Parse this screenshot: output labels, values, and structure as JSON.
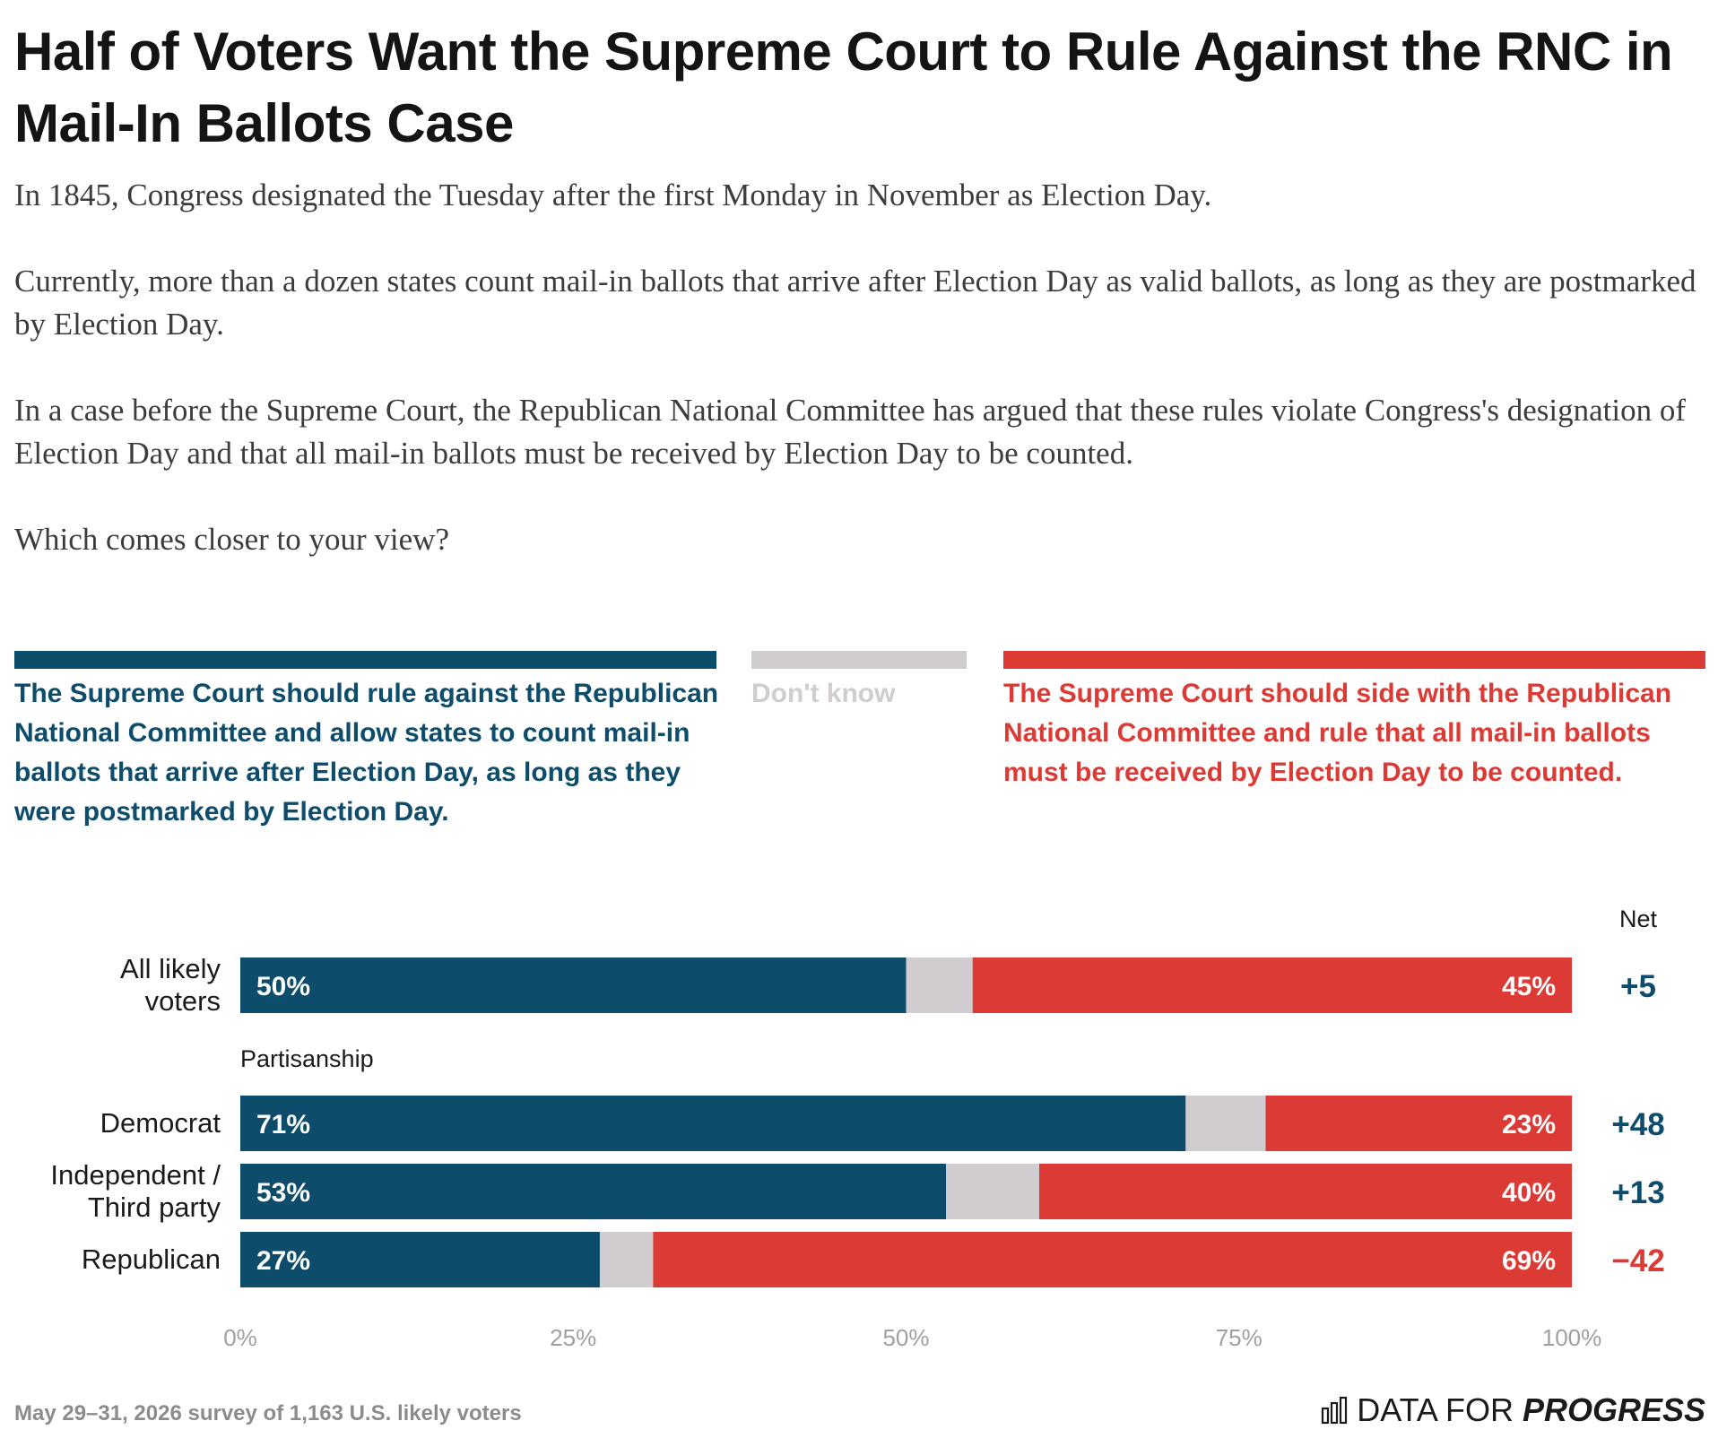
{
  "title": "Half of Voters Want the Supreme Court to Rule Against the RNC in Mail-In Ballots Case",
  "intro": {
    "p1": "In 1845, Congress designated the Tuesday after the first Monday in November as Election Day.",
    "p2": "Currently, more than a dozen states count mail-in ballots that arrive after Election Day as valid ballots, as long as they are postmarked by Election Day.",
    "p3": "In a case before the Supreme Court, the Republican National Committee has argued that these rules violate Congress's designation of Election Day and that all mail-in ballots must be received by Election Day to be counted.",
    "p4": "Which comes closer to your view?"
  },
  "legend": {
    "against": "The Supreme Court should rule against the Republican National Committee and allow states to count mail-in ballots that arrive after Election Day, as long as they were postmarked by Election Day.",
    "dont_know": "Don't know",
    "side_with": "The Supreme Court should side with the Republican National Committee and rule that all mail-in ballots must be received by Election Day to be counted."
  },
  "colors": {
    "against": "#0d4d6b",
    "dont_know": "#d0ccd0",
    "side_with": "#dc3a34"
  },
  "chart_data": {
    "type": "bar",
    "orientation": "horizontal",
    "stacked": true,
    "net_header": "Net",
    "section_label": "Partisanship",
    "categories": [
      "All likely voters",
      "Democrat",
      "Independent / Third party",
      "Republican"
    ],
    "series": [
      {
        "name": "The Supreme Court should rule against the Republican National Committee and allow states to count mail-in ballots that arrive after Election Day, as long as they were postmarked by Election Day.",
        "key": "against",
        "values": [
          50,
          71,
          53,
          27
        ],
        "labels": [
          "50%",
          "71%",
          "53%",
          "27%"
        ]
      },
      {
        "name": "Don't know",
        "key": "dont_know",
        "values": [
          5,
          6,
          7,
          4
        ]
      },
      {
        "name": "The Supreme Court should side with the Republican National Committee and rule that all mail-in ballots must be received by Election Day to be counted.",
        "key": "side_with",
        "values": [
          45,
          23,
          40,
          69
        ],
        "labels": [
          "45%",
          "23%",
          "40%",
          "69%"
        ]
      }
    ],
    "net": [
      "+5",
      "+48",
      "+13",
      "−42"
    ],
    "net_sign": [
      "positive",
      "positive",
      "positive",
      "negative"
    ],
    "xlim": [
      0,
      100
    ],
    "xticks": [
      "0%",
      "25%",
      "50%",
      "75%",
      "100%"
    ],
    "grid": false
  },
  "footer": {
    "note": "May 29–31, 2026 survey of 1,163 U.S. likely voters",
    "brand_light": "DATA FOR",
    "brand_strong": "PROGRESS"
  }
}
